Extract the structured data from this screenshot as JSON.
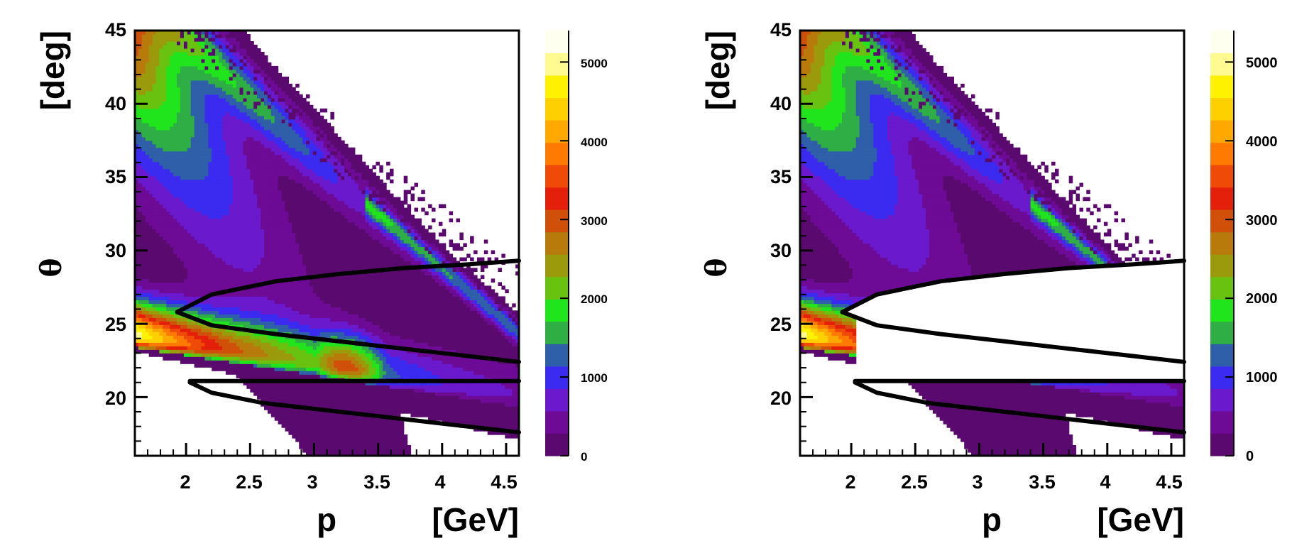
{
  "chart_data": [
    {
      "type": "heatmap",
      "panel": "left",
      "xlabel_symbol": "p",
      "xlabel_unit": "[GeV]",
      "ylabel_symbol": "θ",
      "ylabel_unit": "[deg]",
      "xlim": [
        1.6,
        4.6
      ],
      "ylim": [
        16,
        45
      ],
      "xticks": [
        "2",
        "2.5",
        "3",
        "3.5",
        "4",
        "4.5"
      ],
      "yticks": [
        "20",
        "25",
        "30",
        "35",
        "40",
        "45"
      ],
      "colorbar": {
        "range": [
          0,
          5400
        ],
        "ticks": [
          "0",
          "1000",
          "2000",
          "3000",
          "4000",
          "5000"
        ]
      },
      "cut_applied": false,
      "cut_lines": {
        "vertex": [
          1.93,
          25.8
        ],
        "upper_branch": [
          [
            1.93,
            25.8
          ],
          [
            2.2,
            27.0
          ],
          [
            2.7,
            27.9
          ],
          [
            3.2,
            28.4
          ],
          [
            3.7,
            28.8
          ],
          [
            4.2,
            29.05
          ],
          [
            4.6,
            29.3
          ]
        ],
        "lower_branch": [
          [
            1.93,
            25.8
          ],
          [
            2.2,
            24.9
          ],
          [
            2.7,
            24.3
          ],
          [
            3.2,
            23.8
          ],
          [
            3.7,
            23.3
          ],
          [
            4.2,
            22.8
          ],
          [
            4.6,
            22.4
          ]
        ],
        "flat_line": [
          [
            2.03,
            21.1
          ],
          [
            4.6,
            21.1
          ]
        ],
        "bottom_curve": [
          [
            2.03,
            21.0
          ],
          [
            2.2,
            20.3
          ],
          [
            2.6,
            19.6
          ],
          [
            3.0,
            19.2
          ],
          [
            3.5,
            18.7
          ],
          [
            4.0,
            18.2
          ],
          [
            4.6,
            17.6
          ]
        ]
      }
    },
    {
      "type": "heatmap",
      "panel": "right",
      "xlabel_symbol": "p",
      "xlabel_unit": "[GeV]",
      "ylabel_symbol": "θ",
      "ylabel_unit": "[deg]",
      "xlim": [
        1.6,
        4.6
      ],
      "ylim": [
        16,
        45
      ],
      "xticks": [
        "2",
        "2.5",
        "3",
        "3.5",
        "4",
        "4.5"
      ],
      "yticks": [
        "20",
        "25",
        "30",
        "35",
        "40",
        "45"
      ],
      "colorbar": {
        "range": [
          0,
          5400
        ],
        "ticks": [
          "0",
          "1000",
          "2000",
          "3000",
          "4000",
          "5000"
        ]
      },
      "cut_applied": true,
      "cut_lines": {
        "vertex": [
          1.93,
          25.8
        ],
        "upper_branch": [
          [
            1.93,
            25.8
          ],
          [
            2.2,
            27.0
          ],
          [
            2.7,
            27.9
          ],
          [
            3.2,
            28.4
          ],
          [
            3.7,
            28.8
          ],
          [
            4.2,
            29.05
          ],
          [
            4.6,
            29.3
          ]
        ],
        "lower_branch": [
          [
            1.93,
            25.8
          ],
          [
            2.2,
            24.9
          ],
          [
            2.7,
            24.3
          ],
          [
            3.2,
            23.8
          ],
          [
            3.7,
            23.3
          ],
          [
            4.2,
            22.8
          ],
          [
            4.6,
            22.4
          ]
        ],
        "flat_line": [
          [
            2.03,
            21.1
          ],
          [
            4.6,
            21.1
          ]
        ],
        "bottom_curve": [
          [
            2.03,
            21.0
          ],
          [
            2.2,
            20.3
          ],
          [
            2.6,
            19.6
          ],
          [
            3.0,
            19.2
          ],
          [
            3.5,
            18.7
          ],
          [
            4.0,
            18.2
          ],
          [
            4.6,
            17.6
          ]
        ]
      }
    }
  ],
  "colors": {
    "palette": [
      "#5a0a6e",
      "#6d0b96",
      "#6a19cc",
      "#3b2af0",
      "#2f5fa8",
      "#2fae45",
      "#21e51c",
      "#68c20f",
      "#9a9a0c",
      "#b87a0a",
      "#d0500a",
      "#e5200a",
      "#f04a08",
      "#ff7a00",
      "#ffa800",
      "#ffd000",
      "#fff200",
      "#fffb90",
      "#fffff0"
    ],
    "cut_line": "#000000",
    "axis": "#000000"
  }
}
